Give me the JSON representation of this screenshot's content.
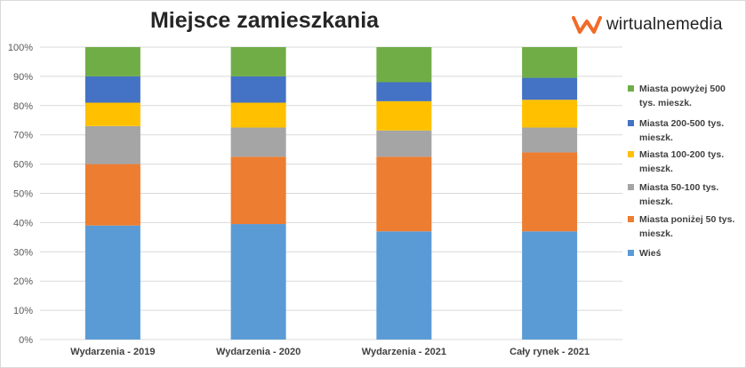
{
  "logo": {
    "text": "wirtualnemedia",
    "accent_color": "#f26a28"
  },
  "chart_data": {
    "type": "bar",
    "stacked": true,
    "title": "Miejsce zamieszkania",
    "categories": [
      "Wydarzenia - 2019",
      "Wydarzenia - 2020",
      "Wydarzenia - 2021",
      "Cały rynek - 2021"
    ],
    "yticks": [
      "0%",
      "10%",
      "20%",
      "30%",
      "40%",
      "50%",
      "60%",
      "70%",
      "80%",
      "90%",
      "100%"
    ],
    "ylim": [
      0,
      100
    ],
    "grid": true,
    "legend_position": "right",
    "series": [
      {
        "name": "Wieś",
        "color": "#5b9bd5",
        "values": [
          39,
          39.5,
          37,
          37
        ]
      },
      {
        "name": "Miasta poniżej 50 tys. mieszk.",
        "color": "#ed7d31",
        "values": [
          21,
          23,
          25.5,
          27
        ]
      },
      {
        "name": "Miasta 50-100 tys. mieszk.",
        "color": "#a5a5a5",
        "values": [
          13,
          10,
          9,
          8.5
        ]
      },
      {
        "name": "Miasta 100-200 tys. mieszk.",
        "color": "#ffc000",
        "values": [
          8,
          8.5,
          10,
          9.5
        ]
      },
      {
        "name": "Miasta 200-500 tys. mieszk.",
        "color": "#4472c4",
        "values": [
          9,
          9,
          6.5,
          7.5
        ]
      },
      {
        "name": "Miasta powyżej 500 tys. mieszk.",
        "color": "#70ad47",
        "values": [
          10,
          10,
          12,
          10.5
        ]
      }
    ]
  }
}
